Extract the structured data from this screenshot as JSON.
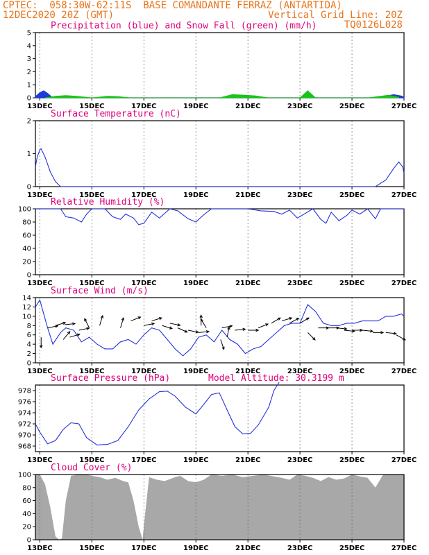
{
  "header": {
    "line1": "CPTEC:  058:30W-62:11S  BASE COMANDANTE FERRAZ (ANTARTIDA)",
    "line2_left": "12DEC2020 20Z (GMT)",
    "line2_right": "Vertical Grid Line: 20Z",
    "line3_right": "TQ0126L028"
  },
  "colors": {
    "header": "#e8741a",
    "title": "#e0007a",
    "precip": "#1f3ad6",
    "snow": "#18c418",
    "line": "#2233dd",
    "cloud": "#a8a8a8",
    "arrow": "#000000"
  },
  "x_ticks": [
    "13DEC",
    "15DEC",
    "17DEC",
    "19DEC",
    "21DEC",
    "23DEC",
    "25DEC",
    "27DEC"
  ],
  "chart_data": [
    {
      "id": "precip",
      "type": "area",
      "title": "Precipitation (blue) and Snow Fall (green) (mm/h)",
      "ylim": [
        0,
        5
      ],
      "yticks": [
        "0",
        "1",
        "2",
        "3",
        "4",
        "5"
      ],
      "x_range": [
        12.83,
        27.0
      ],
      "series": [
        {
          "name": "blue",
          "x": [
            12.83,
            13.0,
            13.15,
            13.3,
            13.5,
            25.9,
            26.2,
            26.6,
            26.9,
            27.0
          ],
          "values": [
            0.1,
            0.4,
            0.55,
            0.35,
            0.0,
            0.0,
            0.1,
            0.25,
            0.15,
            0.05
          ]
        },
        {
          "name": "green",
          "x": [
            13.2,
            13.6,
            14.0,
            14.4,
            14.8,
            15.0,
            15.6,
            16.0,
            16.5,
            19.9,
            20.4,
            20.9,
            21.3,
            21.8,
            23.0,
            23.3,
            23.6,
            25.6,
            26.0,
            26.4,
            26.8
          ],
          "values": [
            0.0,
            0.12,
            0.18,
            0.12,
            0.05,
            0.0,
            0.12,
            0.1,
            0.0,
            0.0,
            0.25,
            0.2,
            0.15,
            0.0,
            0.0,
            0.55,
            0.0,
            0.0,
            0.1,
            0.2,
            0.05
          ]
        }
      ]
    },
    {
      "id": "temp",
      "type": "line",
      "title": "Surface Temperature (nC)",
      "ylim": [
        0,
        2
      ],
      "yticks": [
        "0",
        "1",
        "2"
      ],
      "series": [
        {
          "x": [
            12.83,
            12.9,
            13.0,
            13.05,
            13.2,
            13.4,
            13.6,
            13.8,
            25.9,
            26.3,
            26.6,
            26.8,
            26.95,
            27.0
          ],
          "values": [
            0.6,
            0.9,
            1.12,
            1.15,
            0.9,
            0.45,
            0.15,
            0.0,
            0.0,
            0.2,
            0.55,
            0.75,
            0.6,
            0.4
          ]
        }
      ]
    },
    {
      "id": "rh",
      "type": "line",
      "title": "Relative Humidity (%)",
      "ylim": [
        0,
        100
      ],
      "yticks": [
        "0",
        "20",
        "40",
        "60",
        "80",
        "100"
      ],
      "series": [
        {
          "x": [
            12.83,
            13.8,
            14.0,
            14.3,
            14.6,
            14.8,
            15.0,
            15.5,
            15.8,
            16.1,
            16.3,
            16.6,
            16.8,
            17.0,
            17.3,
            17.6,
            18.0,
            18.3,
            18.7,
            19.0,
            19.3,
            19.6,
            20.0,
            21.0,
            21.5,
            22.0,
            22.3,
            22.6,
            22.9,
            23.5,
            23.8,
            24.0,
            24.2,
            24.5,
            24.8,
            25.0,
            25.3,
            25.6,
            25.9,
            26.1,
            27.0
          ],
          "values": [
            100,
            100,
            88,
            86,
            80,
            92,
            100,
            100,
            88,
            84,
            92,
            86,
            76,
            78,
            95,
            86,
            100,
            97,
            85,
            80,
            91,
            100,
            100,
            100,
            97,
            96,
            92,
            98,
            86,
            100,
            84,
            78,
            95,
            82,
            90,
            98,
            92,
            100,
            85,
            100,
            100
          ]
        }
      ]
    },
    {
      "id": "wind",
      "type": "line",
      "title": "Surface Wind (m/s)",
      "ylim": [
        0,
        14
      ],
      "yticks": [
        "0",
        "2",
        "4",
        "6",
        "8",
        "10",
        "12",
        "14"
      ],
      "series": [
        {
          "x": [
            12.83,
            13.0,
            13.1,
            13.3,
            13.5,
            13.8,
            14.0,
            14.3,
            14.6,
            14.9,
            15.2,
            15.5,
            15.8,
            16.1,
            16.4,
            16.7,
            17.0,
            17.3,
            17.6,
            17.9,
            18.2,
            18.5,
            18.8,
            19.1,
            19.4,
            19.7,
            20.0,
            20.3,
            20.6,
            20.9,
            21.2,
            21.5,
            21.8,
            22.1,
            22.4,
            22.7,
            23.0,
            23.3,
            23.6,
            23.9,
            24.2,
            24.5,
            24.8,
            25.1,
            25.4,
            25.7,
            26.0,
            26.3,
            26.6,
            26.9,
            27.0
          ],
          "values": [
            12,
            13.5,
            11.5,
            7.5,
            4,
            6.5,
            7.5,
            7,
            4.5,
            5.5,
            4,
            3,
            3,
            4.5,
            5,
            4,
            6,
            7.5,
            7,
            5,
            3,
            1.5,
            3,
            5.5,
            6,
            4.5,
            7,
            5,
            4,
            2,
            3,
            3.5,
            5,
            6.5,
            8,
            8.5,
            8.5,
            12.5,
            11,
            8.5,
            8,
            8,
            8.5,
            8.5,
            9,
            9,
            9,
            10,
            10,
            10.5,
            10
          ]
        }
      ]
    },
    {
      "id": "pressure",
      "type": "line",
      "title": "Surface Pressure (hPa)",
      "subtitle": "Model Altitude: 30.3199 m",
      "ylim": [
        967,
        979
      ],
      "yticks": [
        "968",
        "970",
        "972",
        "974",
        "976",
        "978"
      ],
      "series": [
        {
          "x": [
            12.83,
            13.0,
            13.3,
            13.6,
            13.9,
            14.2,
            14.5,
            14.8,
            15.2,
            15.6,
            16.0,
            16.4,
            16.8,
            17.2,
            17.6,
            17.9,
            18.2,
            18.6,
            19.0,
            19.3,
            19.6,
            19.9,
            20.2,
            20.5,
            20.8,
            21.1,
            21.4,
            21.8,
            22.0,
            22.2
          ],
          "values": [
            972,
            970.5,
            968.4,
            969,
            971,
            972.2,
            972,
            969.5,
            968.2,
            968.3,
            969,
            971.5,
            974.5,
            976.5,
            977.8,
            977.9,
            977,
            975,
            973.8,
            975.5,
            977.3,
            977.6,
            974.5,
            971.5,
            970.2,
            970.3,
            971.8,
            975,
            978,
            979.5
          ]
        }
      ]
    },
    {
      "id": "cloud",
      "type": "area",
      "title": "Cloud Cover (%)",
      "ylim": [
        0,
        100
      ],
      "yticks": [
        "0",
        "20",
        "40",
        "60",
        "80",
        "100"
      ],
      "series": [
        {
          "x": [
            12.83,
            13.0,
            13.2,
            13.4,
            13.6,
            13.75,
            13.85,
            14.0,
            14.2,
            14.5,
            14.8,
            15.0,
            15.3,
            15.6,
            15.9,
            16.2,
            16.4,
            16.6,
            16.8,
            16.95,
            17.05,
            17.2,
            17.5,
            17.8,
            18.0,
            18.2,
            18.4,
            18.7,
            19.0,
            19.3,
            19.6,
            20.0,
            20.4,
            20.8,
            21.2,
            21.6,
            22.0,
            22.3,
            22.6,
            22.9,
            23.2,
            23.5,
            23.8,
            24.1,
            24.4,
            24.7,
            25.0,
            25.3,
            25.6,
            25.9,
            26.2,
            26.5,
            26.8,
            27.0
          ],
          "values": [
            100,
            100,
            85,
            50,
            5,
            0,
            2,
            60,
            98,
            100,
            100,
            98,
            96,
            92,
            95,
            90,
            88,
            60,
            20,
            0,
            40,
            96,
            92,
            90,
            93,
            96,
            98,
            90,
            88,
            92,
            100,
            98,
            100,
            96,
            98,
            100,
            97,
            95,
            92,
            100,
            98,
            95,
            90,
            96,
            92,
            94,
            100,
            97,
            95,
            80,
            100,
            100,
            100,
            100
          ]
        }
      ]
    }
  ],
  "wind_vectors": [
    {
      "x": 13.05,
      "y": 5.5,
      "u": 0,
      "v": -1
    },
    {
      "x": 13.3,
      "y": 7.5,
      "u": 1,
      "v": 0.2
    },
    {
      "x": 13.6,
      "y": 8.0,
      "u": 1,
      "v": 0.3
    },
    {
      "x": 13.95,
      "y": 8.2,
      "u": 1,
      "v": 0.1
    },
    {
      "x": 13.9,
      "y": 5.0,
      "u": 0.5,
      "v": 0.6
    },
    {
      "x": 14.15,
      "y": 5.5,
      "u": 1,
      "v": 0.3
    },
    {
      "x": 14.5,
      "y": 7.0,
      "u": 1,
      "v": 0.2
    },
    {
      "x": 14.9,
      "y": 7.5,
      "u": -0.4,
      "v": 0.8
    },
    {
      "x": 15.3,
      "y": 8.0,
      "u": 0.3,
      "v": 1
    },
    {
      "x": 16.1,
      "y": 7.5,
      "u": 0.3,
      "v": 1
    },
    {
      "x": 16.5,
      "y": 9.0,
      "u": 1,
      "v": 0.4
    },
    {
      "x": 17.0,
      "y": 8.0,
      "u": 1,
      "v": 0.2
    },
    {
      "x": 17.3,
      "y": 9.0,
      "u": 1,
      "v": 0.3
    },
    {
      "x": 17.7,
      "y": 8.0,
      "u": 1,
      "v": -0.3
    },
    {
      "x": 18.0,
      "y": 8.5,
      "u": 1,
      "v": -0.2
    },
    {
      "x": 18.3,
      "y": 7.5,
      "u": 0.9,
      "v": -0.4
    },
    {
      "x": 18.7,
      "y": 7.0,
      "u": 1,
      "v": -0.2
    },
    {
      "x": 19.1,
      "y": 6.5,
      "u": 1,
      "v": 0.1
    },
    {
      "x": 19.2,
      "y": 8.0,
      "u": 0,
      "v": 1
    },
    {
      "x": 19.4,
      "y": 7.5,
      "u": -0.5,
      "v": 0.8
    },
    {
      "x": 20.0,
      "y": 7.5,
      "u": 1,
      "v": 0.2
    },
    {
      "x": 19.95,
      "y": 5.0,
      "u": 0.3,
      "v": -0.9
    },
    {
      "x": 20.2,
      "y": 5.5,
      "u": 0.2,
      "v": 1
    },
    {
      "x": 20.5,
      "y": 7.0,
      "u": 1,
      "v": 0.1
    },
    {
      "x": 21.0,
      "y": 7.0,
      "u": 1,
      "v": 0
    },
    {
      "x": 21.4,
      "y": 7.5,
      "u": 1,
      "v": 0.4
    },
    {
      "x": 21.9,
      "y": 8.5,
      "u": 1,
      "v": 0.6
    },
    {
      "x": 22.3,
      "y": 9.0,
      "u": 1,
      "v": 0.3
    },
    {
      "x": 22.6,
      "y": 8.5,
      "u": 0.9,
      "v": 0.5
    },
    {
      "x": 23.0,
      "y": 8.5,
      "u": 1,
      "v": 0.6
    },
    {
      "x": 23.3,
      "y": 6.5,
      "u": 0.7,
      "v": -0.7
    },
    {
      "x": 23.7,
      "y": 7.5,
      "u": 1,
      "v": 0
    },
    {
      "x": 24.1,
      "y": 7.5,
      "u": 1,
      "v": 0
    },
    {
      "x": 24.4,
      "y": 7.5,
      "u": 1,
      "v": -0.1
    },
    {
      "x": 24.7,
      "y": 7.0,
      "u": 1,
      "v": -0.1
    },
    {
      "x": 25.0,
      "y": 7.0,
      "u": 1,
      "v": 0
    },
    {
      "x": 25.4,
      "y": 7.0,
      "u": 1,
      "v": -0.1
    },
    {
      "x": 25.8,
      "y": 6.5,
      "u": 1,
      "v": 0
    },
    {
      "x": 26.3,
      "y": 6.5,
      "u": 1,
      "v": -0.1
    },
    {
      "x": 26.7,
      "y": 6.0,
      "u": 0.9,
      "v": -0.5
    }
  ]
}
